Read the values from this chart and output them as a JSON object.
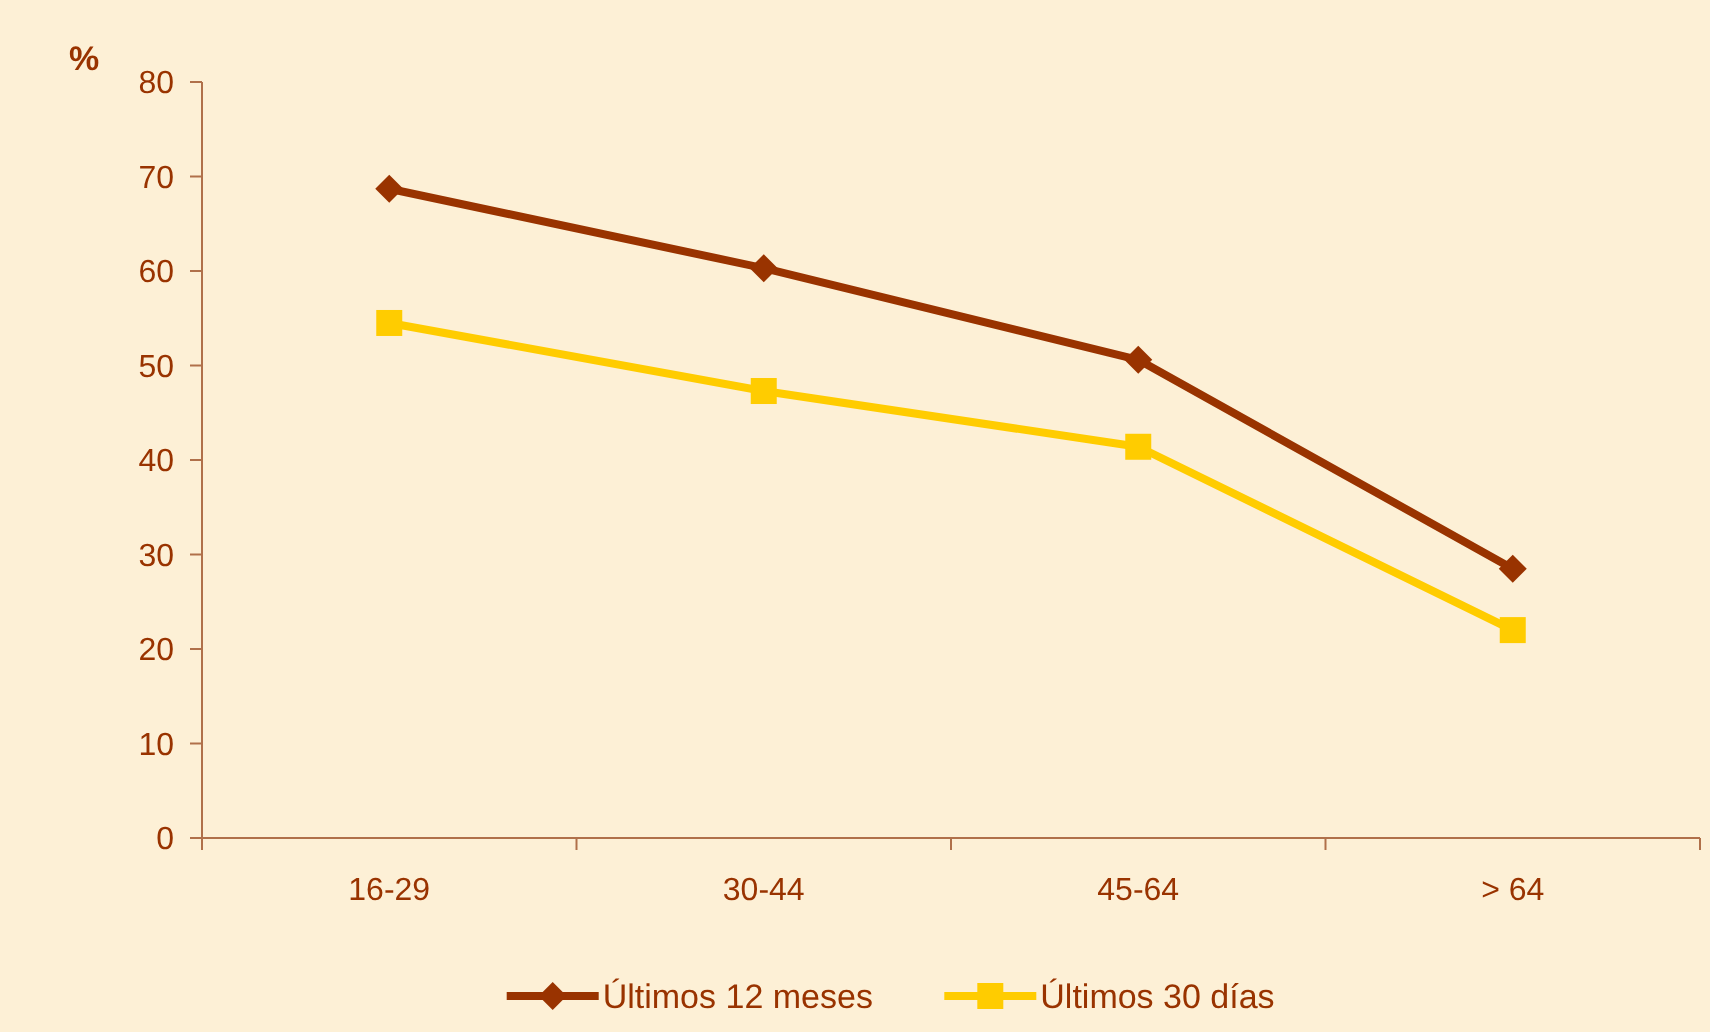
{
  "chart_data": {
    "type": "line",
    "ylabel": "%",
    "categories": [
      "16-29",
      "30-44",
      "45-64",
      "> 64"
    ],
    "series": [
      {
        "name": "Últimos 12 meses",
        "color": "#993300",
        "marker": "diamond",
        "values": [
          68.7,
          60.3,
          50.6,
          28.5
        ]
      },
      {
        "name": "Últimos 30 días",
        "color": "#ffcc00",
        "marker": "square",
        "values": [
          54.5,
          47.3,
          41.4,
          22.0
        ]
      }
    ],
    "ylim": [
      0,
      80
    ],
    "yticks": [
      0,
      10,
      20,
      30,
      40,
      50,
      60,
      70,
      80
    ],
    "grid": false,
    "legend": "bottom",
    "line_style": "solid"
  }
}
